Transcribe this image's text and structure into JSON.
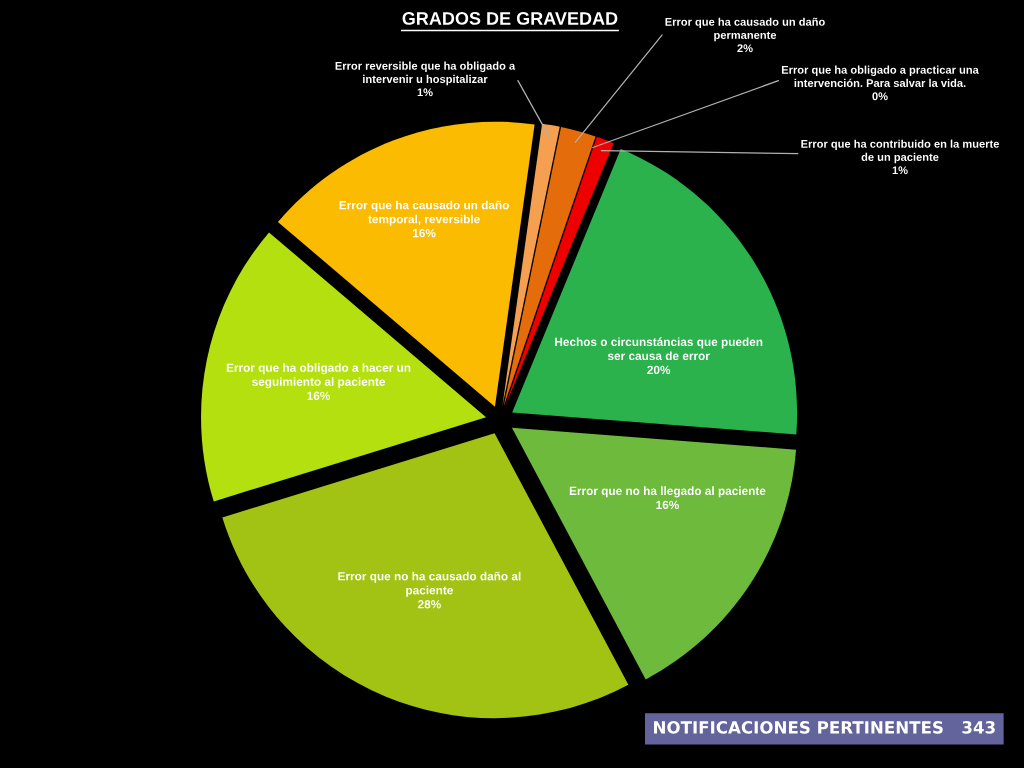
{
  "chart_data": {
    "type": "pie",
    "title": "GRADOS DE GRAVEDAD",
    "categories": [
      "Error reversible que ha obligado a intervenir u hospitalizar",
      "Error que ha causado un daño permanente",
      "Error que ha obligado a practicar una intervención. Para salvar la vida.",
      "Error que ha contribuido en la muerte de un paciente",
      "Hechos o circunstáncias que pueden ser causa de error",
      "Error que no ha llegado al paciente",
      "Error que no ha causado daño al paciente",
      "Error que ha obligado a hacer un seguimiento al paciente",
      "Error que ha causado un daño temporal, reversible"
    ],
    "values": [
      1,
      2,
      0,
      1,
      20,
      16,
      28,
      16,
      16
    ],
    "colors": [
      "#f5a050",
      "#e46c0a",
      "#c00000",
      "#ee0000",
      "#2bb24c",
      "#6dba3d",
      "#a2c313",
      "#b3e00e",
      "#fbbb00"
    ],
    "value_labels": [
      "1%",
      "2%",
      "0%",
      "1%",
      "20%",
      "16%",
      "28%",
      "16%",
      "16%"
    ],
    "annotations": [
      "NOTIFICACIONES PERTINENTES   343"
    ]
  }
}
